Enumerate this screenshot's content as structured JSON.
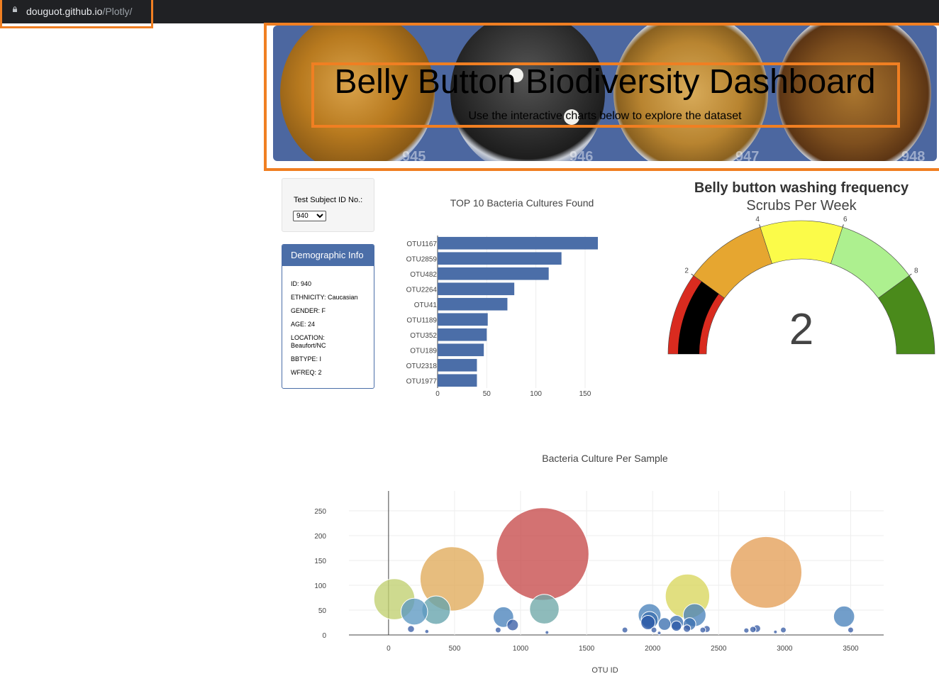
{
  "browser": {
    "url_domain": "douguot.github.io",
    "url_path": "/Plotly/"
  },
  "header": {
    "title": "Belly Button Biodiversity Dashboard",
    "subtitle": "Use the interactive charts below to explore the dataset",
    "dish_numbers": [
      "945",
      "946",
      "947",
      "948"
    ]
  },
  "selector": {
    "label": "Test Subject ID No.:",
    "selected": "940"
  },
  "demographic": {
    "title": "Demographic Info",
    "rows": [
      "ID: 940",
      "ETHNICITY: Caucasian",
      "GENDER: F",
      "AGE: 24",
      "LOCATION: Beaufort/NC",
      "BBTYPE: I",
      "WFREQ: 2"
    ]
  },
  "colors": {
    "accent_orange": "#f07f22",
    "panel_blue": "#4b6ea8",
    "bar_blue": "#4b6ea8"
  },
  "chart_data": [
    {
      "type": "bar",
      "orientation": "horizontal",
      "title": "TOP 10 Bacteria Cultures Found",
      "categories": [
        "OTU1167",
        "OTU2859",
        "OTU482",
        "OTU2264",
        "OTU41",
        "OTU1189",
        "OTU352",
        "OTU189",
        "OTU2318",
        "OTU1977"
      ],
      "values": [
        163,
        126,
        113,
        78,
        71,
        51,
        50,
        47,
        40,
        40
      ],
      "xlim": [
        0,
        163
      ],
      "xticks": [
        0,
        50,
        100,
        150
      ],
      "grid": true
    },
    {
      "type": "gauge",
      "title": "Belly button washing frequency",
      "subtitle": "Scrubs Per Week",
      "value": 2,
      "range": [
        0,
        10
      ],
      "tick_labels": [
        "2",
        "4",
        "6",
        "8"
      ],
      "bands": [
        {
          "from": 0,
          "to": 2,
          "color": "#d92b1f"
        },
        {
          "from": 2,
          "to": 4,
          "color": "#e6a630"
        },
        {
          "from": 4,
          "to": 6,
          "color": "#fbfb49"
        },
        {
          "from": 6,
          "to": 8,
          "color": "#adf08f"
        },
        {
          "from": 8,
          "to": 10,
          "color": "#4a8a1b"
        }
      ],
      "value_bar_color": "#000000"
    },
    {
      "type": "scatter",
      "subtype": "bubble",
      "title": "Bacteria Culture Per Sample",
      "xlabel": "OTU ID",
      "xlim": [
        -300,
        3750
      ],
      "ylim": [
        0,
        290
      ],
      "xticks": [
        0,
        500,
        1000,
        1500,
        2000,
        2500,
        3000,
        3500
      ],
      "yticks": [
        0,
        50,
        100,
        150,
        200,
        250
      ],
      "grid": true,
      "points": [
        {
          "x": 44,
          "y": 72,
          "color": "#c0cf70"
        },
        {
          "x": 195,
          "y": 47,
          "color": "#5c99c1"
        },
        {
          "x": 360,
          "y": 50,
          "color": "#64a3ac"
        },
        {
          "x": 482,
          "y": 113,
          "color": "#e0ab5a"
        },
        {
          "x": 870,
          "y": 36,
          "color": "#4a83bb"
        },
        {
          "x": 1167,
          "y": 163,
          "color": "#c64a4a"
        },
        {
          "x": 1180,
          "y": 52,
          "color": "#6ea8a8"
        },
        {
          "x": 2264,
          "y": 78,
          "color": "#d9d65c"
        },
        {
          "x": 2859,
          "y": 126,
          "color": "#e49f57"
        },
        {
          "x": 3450,
          "y": 37,
          "color": "#4a83bb"
        },
        {
          "x": 1977,
          "y": 40,
          "color": "#4a83bb"
        },
        {
          "x": 2318,
          "y": 40,
          "color": "#4a83bb"
        },
        {
          "x": 1977,
          "y": 30,
          "color": "#3b6fb0"
        },
        {
          "x": 2180,
          "y": 25,
          "color": "#3b6fb0"
        },
        {
          "x": 2090,
          "y": 22,
          "color": "#3b6fb0"
        },
        {
          "x": 1965,
          "y": 25,
          "color": "#2b58a6"
        },
        {
          "x": 2280,
          "y": 22,
          "color": "#3b6fb0"
        },
        {
          "x": 940,
          "y": 20,
          "color": "#3b5fa6"
        },
        {
          "x": 2180,
          "y": 18,
          "color": "#2b58a6"
        },
        {
          "x": 2260,
          "y": 13,
          "color": "#3b5fa6"
        },
        {
          "x": 170,
          "y": 12,
          "color": "#3b5fa6"
        },
        {
          "x": 830,
          "y": 10,
          "color": "#3b5fa6"
        },
        {
          "x": 1790,
          "y": 10,
          "color": "#3b5fa6"
        },
        {
          "x": 2010,
          "y": 10,
          "color": "#3b5fa6"
        },
        {
          "x": 2790,
          "y": 13,
          "color": "#3b5fa6"
        },
        {
          "x": 2760,
          "y": 11,
          "color": "#3b5fa6"
        },
        {
          "x": 2380,
          "y": 10,
          "color": "#3b5fa6"
        },
        {
          "x": 2410,
          "y": 12,
          "color": "#3b5fa6"
        },
        {
          "x": 2990,
          "y": 10,
          "color": "#3b5fa6"
        },
        {
          "x": 2710,
          "y": 9,
          "color": "#3b5fa6"
        },
        {
          "x": 3500,
          "y": 10,
          "color": "#3b5fa6"
        },
        {
          "x": 290,
          "y": 7,
          "color": "#3b5fa6"
        },
        {
          "x": 1200,
          "y": 5,
          "color": "#3b5fa6"
        },
        {
          "x": 2930,
          "y": 6,
          "color": "#3b5fa6"
        },
        {
          "x": 2050,
          "y": 4,
          "color": "#3b5fa6"
        }
      ]
    }
  ]
}
